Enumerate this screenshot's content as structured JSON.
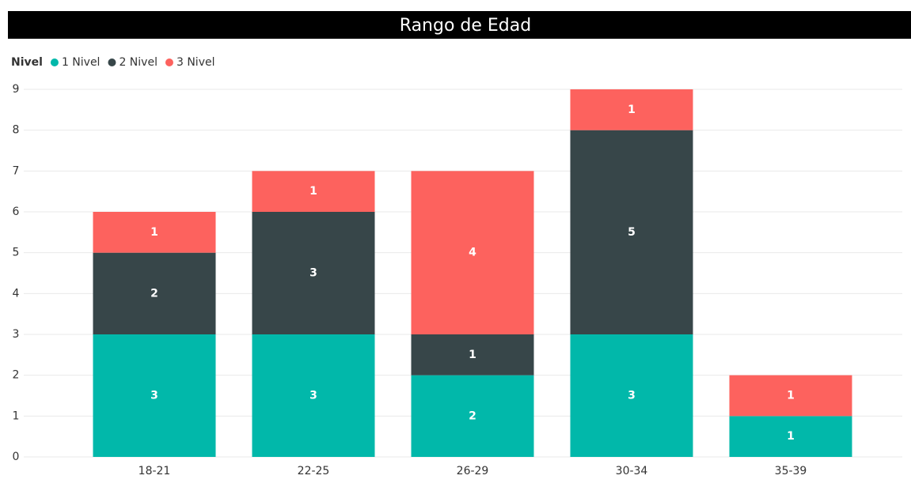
{
  "chart_data": {
    "type": "stacked_bar",
    "title": "Rango de Edad",
    "legend_title": "Nivel",
    "legend_position": "top-left",
    "categories": [
      "18-21",
      "22-25",
      "26-29",
      "30-34",
      "35-39"
    ],
    "series": [
      {
        "name": "1 Nivel",
        "color": "#01b8aa",
        "values": [
          3,
          3,
          2,
          3,
          1
        ]
      },
      {
        "name": "2 Nivel",
        "color": "#374649",
        "values": [
          2,
          3,
          1,
          5,
          null
        ]
      },
      {
        "name": "3 Nivel",
        "color": "#fd625e",
        "values": [
          1,
          1,
          4,
          1,
          1
        ]
      }
    ],
    "ylim": [
      0,
      9
    ],
    "yticks": [
      0,
      1,
      2,
      3,
      4,
      5,
      6,
      7,
      8,
      9
    ],
    "grid": true
  }
}
